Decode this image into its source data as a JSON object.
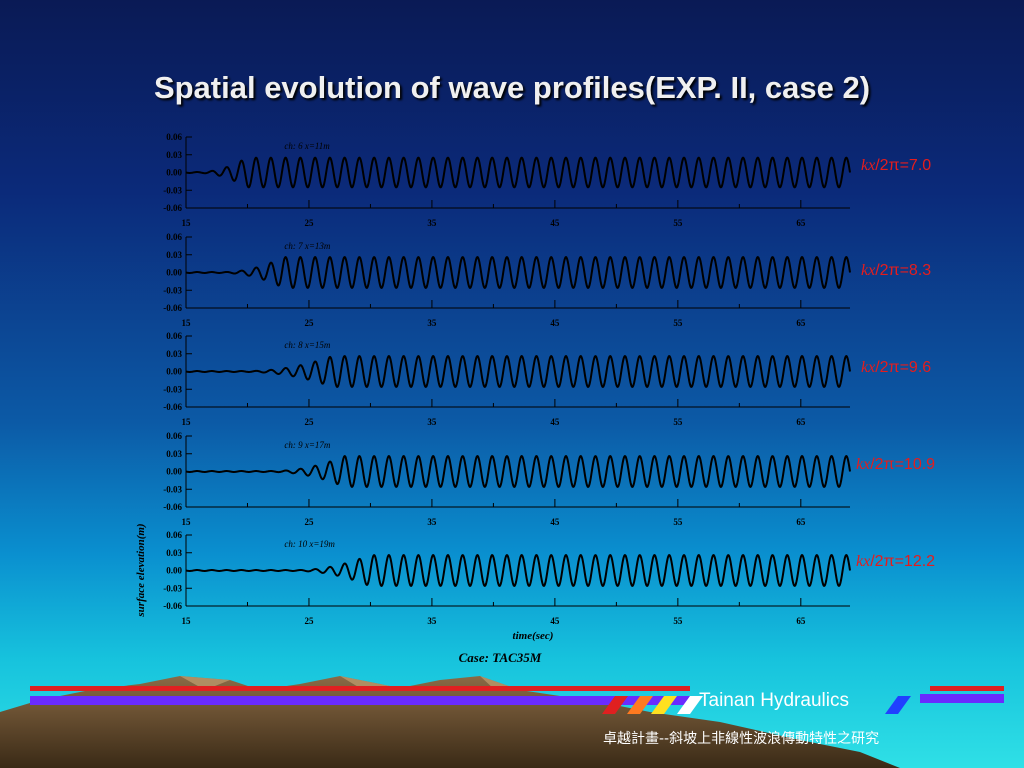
{
  "slide": {
    "title": "Spatial evolution of wave profiles(EXP. II, case 2)",
    "brand": "Tainan Hydraulics",
    "project": "卓越計畫--斜坡上非線性波浪傳動特性之研究"
  },
  "colors": {
    "title": "#f0f0f0",
    "label": "#e51d1d",
    "trace": "#000000"
  },
  "chart_data": {
    "type": "line",
    "caption": "Case: TAC35M",
    "xlabel": "time(sec)",
    "ylabel": "surface elevation(m)",
    "xlim": [
      15,
      69
    ],
    "ylim": [
      -0.06,
      0.06
    ],
    "x_ticks": [
      "15",
      "25",
      "35",
      "45",
      "55",
      "65"
    ],
    "y_ticks": [
      "0.06",
      "0.03",
      "0.00",
      "-0.03",
      "-0.06"
    ],
    "wave_period_sec": 1.2,
    "series": [
      {
        "name": "ch: 6  x=11m",
        "kx_label": "kx/2π=7.0",
        "kx": "kx",
        "rest": "/2π=7.0",
        "onset_sec": 16,
        "full_sec": 20,
        "amplitude": 0.025
      },
      {
        "name": "ch: 7  x=13m",
        "kx_label": "kx/2π=8.3",
        "kx": "kx",
        "rest": "/2π=8.3",
        "onset_sec": 18,
        "full_sec": 23,
        "amplitude": 0.026
      },
      {
        "name": "ch: 8  x=15m",
        "kx_label": "kx/2π=9.6",
        "kx": "kx",
        "rest": "/2π=9.6",
        "onset_sec": 20,
        "full_sec": 27,
        "amplitude": 0.026
      },
      {
        "name": "ch: 9  x=17m",
        "kx_label": "kx/2π=10.9",
        "kx": "kx",
        "rest": "/2π=10.9",
        "onset_sec": 22,
        "full_sec": 28,
        "amplitude": 0.026
      },
      {
        "name": "ch: 10  x=19m",
        "kx_label": "kx/2π=12.2",
        "kx": "kx",
        "rest": "/2π=12.2",
        "onset_sec": 24,
        "full_sec": 30,
        "amplitude": 0.026
      }
    ]
  }
}
